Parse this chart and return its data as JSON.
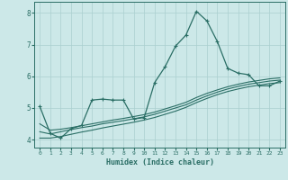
{
  "xlabel": "Humidex (Indice chaleur)",
  "background_color": "#cce8e8",
  "line_color": "#2a6e65",
  "grid_color": "#aacfcf",
  "xlim": [
    -0.5,
    23.5
  ],
  "ylim": [
    3.75,
    8.35
  ],
  "xticks": [
    0,
    1,
    2,
    3,
    4,
    5,
    6,
    7,
    8,
    9,
    10,
    11,
    12,
    13,
    14,
    15,
    16,
    17,
    18,
    19,
    20,
    21,
    22,
    23
  ],
  "yticks": [
    4,
    5,
    6,
    7,
    8
  ],
  "line1_x": [
    0,
    1,
    2,
    3,
    4,
    5,
    6,
    7,
    8,
    9,
    10,
    11,
    12,
    13,
    14,
    15,
    16,
    17,
    18,
    19,
    20,
    21,
    22,
    23
  ],
  "line1_y": [
    5.05,
    4.2,
    4.05,
    4.35,
    4.45,
    5.25,
    5.28,
    5.25,
    5.25,
    4.65,
    4.7,
    5.8,
    6.3,
    6.95,
    7.3,
    8.05,
    7.75,
    7.1,
    6.25,
    6.1,
    6.05,
    5.7,
    5.7,
    5.85
  ],
  "line2_x": [
    0,
    1,
    2,
    3,
    4,
    5,
    6,
    7,
    8,
    9,
    10,
    11,
    12,
    13,
    14,
    15,
    16,
    17,
    18,
    19,
    20,
    21,
    22,
    23
  ],
  "line2_y": [
    4.25,
    4.18,
    4.25,
    4.32,
    4.38,
    4.43,
    4.5,
    4.55,
    4.6,
    4.66,
    4.72,
    4.8,
    4.9,
    5.0,
    5.1,
    5.25,
    5.38,
    5.5,
    5.6,
    5.68,
    5.75,
    5.8,
    5.85,
    5.88
  ],
  "line3_x": [
    0,
    1,
    2,
    3,
    4,
    5,
    6,
    7,
    8,
    9,
    10,
    11,
    12,
    13,
    14,
    15,
    16,
    17,
    18,
    19,
    20,
    21,
    22,
    23
  ],
  "line3_y": [
    4.5,
    4.3,
    4.33,
    4.38,
    4.44,
    4.5,
    4.56,
    4.62,
    4.67,
    4.73,
    4.79,
    4.87,
    4.97,
    5.07,
    5.18,
    5.33,
    5.46,
    5.57,
    5.67,
    5.75,
    5.82,
    5.87,
    5.92,
    5.95
  ],
  "line4_x": [
    0,
    1,
    2,
    3,
    4,
    5,
    6,
    7,
    8,
    9,
    10,
    11,
    12,
    13,
    14,
    15,
    16,
    17,
    18,
    19,
    20,
    21,
    22,
    23
  ],
  "line4_y": [
    4.05,
    4.05,
    4.1,
    4.17,
    4.24,
    4.3,
    4.37,
    4.43,
    4.49,
    4.55,
    4.62,
    4.7,
    4.8,
    4.9,
    5.02,
    5.17,
    5.3,
    5.42,
    5.52,
    5.6,
    5.67,
    5.72,
    5.77,
    5.8
  ]
}
